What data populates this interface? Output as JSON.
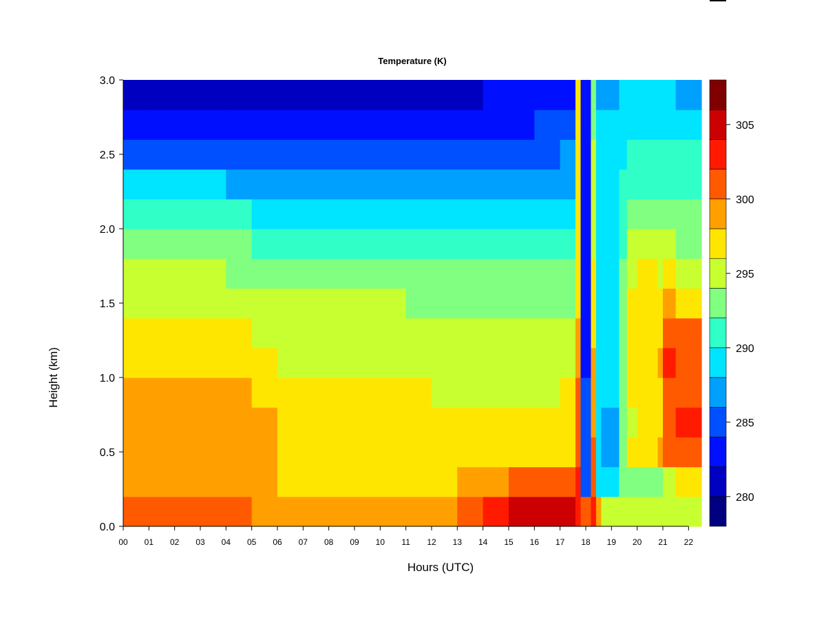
{
  "chart_data": {
    "type": "heatmap",
    "title": "Temperature (K)",
    "xlabel": "Hours (UTC)",
    "ylabel": "Height (km)",
    "xlim": [
      0,
      22.5
    ],
    "ylim": [
      0,
      3
    ],
    "x_ticks": [
      0,
      1,
      2,
      3,
      4,
      5,
      6,
      7,
      8,
      9,
      10,
      11,
      12,
      13,
      14,
      15,
      16,
      17,
      18,
      19,
      20,
      21,
      22
    ],
    "x_tick_labels": [
      "00",
      "01",
      "02",
      "03",
      "04",
      "05",
      "06",
      "07",
      "08",
      "09",
      "10",
      "11",
      "12",
      "13",
      "14",
      "15",
      "16",
      "17",
      "18",
      "19",
      "20",
      "21",
      "22"
    ],
    "y_ticks": [
      0,
      0.5,
      1,
      1.5,
      2,
      2.5,
      3
    ],
    "y_tick_labels": [
      "0.0",
      "0.5",
      "1.0",
      "1.5",
      "2.0",
      "2.5",
      "3.0"
    ],
    "colorbar": {
      "levels": [
        278,
        280,
        282,
        284,
        286,
        288,
        290,
        292,
        294,
        296,
        298,
        300,
        302,
        304,
        306,
        308
      ],
      "colors": [
        "#000080",
        "#0000C0",
        "#0010FF",
        "#0050FF",
        "#00A0FF",
        "#00E5FF",
        "#30FFC8",
        "#80FF80",
        "#C8FF30",
        "#FFE600",
        "#FFA000",
        "#FF5A00",
        "#FF1A00",
        "#CC0000",
        "#800000"
      ],
      "ticks": [
        280,
        285,
        290,
        295,
        300,
        305
      ],
      "tick_labels": [
        "280",
        "285",
        "290",
        "295",
        "300",
        "305"
      ]
    },
    "y_edges_km": [
      0,
      0.2,
      0.4,
      0.6,
      0.8,
      1.0,
      1.2,
      1.4,
      1.6,
      1.8,
      2.0,
      2.2,
      2.4,
      2.6,
      2.8,
      3.0
    ],
    "x_edges_hours": [
      0,
      1,
      2,
      3,
      4,
      5,
      6,
      7,
      8,
      9,
      10,
      11,
      12,
      13,
      14,
      15,
      16,
      17,
      17.6,
      17.8,
      18.2,
      18.4,
      18.6,
      19.3,
      19.6,
      20,
      20.8,
      21,
      21.5,
      22.5
    ],
    "values_K": [
      [
        301,
        299.5,
        299.5,
        299.5,
        299,
        297,
        296,
        295,
        294,
        293,
        291,
        288,
        285,
        283,
        280
      ],
      [
        301,
        299.5,
        299.5,
        299.5,
        299,
        297,
        296,
        295,
        294,
        293,
        291,
        288,
        285,
        283,
        280
      ],
      [
        301.5,
        299.5,
        299.5,
        299.5,
        299,
        297,
        296,
        295,
        294,
        293,
        291,
        288,
        285,
        283,
        280
      ],
      [
        301,
        299.5,
        299.5,
        299.5,
        299,
        297,
        296,
        295,
        294,
        293,
        291,
        288,
        285,
        283,
        280
      ],
      [
        300.5,
        299.5,
        299.5,
        299,
        298,
        297,
        296,
        295,
        293.5,
        292,
        290,
        287.5,
        285,
        283,
        280
      ],
      [
        299,
        298.5,
        299,
        298,
        297.5,
        296.5,
        295.5,
        294.5,
        293,
        291.5,
        289.5,
        287,
        285,
        283,
        280.5
      ],
      [
        298,
        297.5,
        297.5,
        297,
        296.5,
        295.5,
        295,
        294,
        292.5,
        291,
        289,
        287,
        285,
        283,
        281
      ],
      [
        298,
        297.5,
        297.5,
        297,
        296.5,
        295.5,
        295,
        294,
        292.5,
        291,
        289,
        287,
        285,
        283,
        281
      ],
      [
        298,
        297.5,
        297.5,
        297,
        296.5,
        295.5,
        295,
        294,
        292.5,
        291,
        289,
        287,
        285,
        283,
        281
      ],
      [
        298,
        297.5,
        297.5,
        297,
        296.5,
        295.5,
        295,
        294,
        292.5,
        291,
        289,
        287,
        285,
        283,
        281
      ],
      [
        298,
        297.5,
        297.5,
        297,
        296.5,
        295.5,
        295,
        294,
        292.5,
        291,
        289,
        287,
        285,
        283,
        281
      ],
      [
        298.5,
        297.5,
        297,
        296.5,
        296,
        295.5,
        294.5,
        293.5,
        292.5,
        291,
        289,
        287,
        285,
        283,
        281
      ],
      [
        299,
        297.5,
        296.5,
        296,
        295.5,
        295,
        294.5,
        293.5,
        292,
        290.5,
        289,
        287,
        285,
        283,
        281
      ],
      [
        300,
        298,
        296.5,
        296,
        295.5,
        295,
        294.5,
        293.5,
        292,
        290.5,
        289,
        287,
        285,
        283,
        281.5
      ],
      [
        302,
        299.5,
        297,
        296,
        295.5,
        295,
        294.5,
        293,
        292,
        290.5,
        289,
        287,
        285,
        283.5,
        282
      ],
      [
        304,
        300.5,
        297.5,
        296,
        295.5,
        295,
        294.5,
        293,
        292,
        290.5,
        289,
        287,
        285.5,
        283.5,
        282
      ],
      [
        304.5,
        301,
        297.5,
        296.5,
        295.5,
        295,
        294.5,
        293,
        292,
        290.5,
        289,
        287.5,
        285.5,
        284,
        282.5
      ],
      [
        304,
        300.5,
        297.5,
        296.5,
        296,
        295,
        294.5,
        293.5,
        292,
        290.5,
        289,
        287.5,
        286,
        284,
        283
      ],
      [
        303,
        302,
        301,
        301,
        300,
        299,
        298,
        297,
        297,
        296,
        296,
        296,
        296,
        296,
        296
      ],
      [
        301,
        285,
        284,
        284,
        284,
        283.5,
        283,
        283,
        283,
        283,
        283,
        282.5,
        282.5,
        282,
        282
      ],
      [
        303,
        300,
        300,
        299,
        299,
        298,
        297,
        296,
        296,
        295,
        295,
        294,
        294,
        293,
        293
      ],
      [
        299,
        289,
        288,
        289,
        289,
        289,
        289,
        289,
        289,
        289,
        289,
        289,
        288,
        288,
        287
      ],
      [
        294,
        289,
        287,
        287,
        288,
        288.5,
        289,
        289,
        289.5,
        289.5,
        289,
        288.5,
        288,
        288,
        287.5
      ],
      [
        294,
        293,
        293,
        292.5,
        292,
        292,
        292,
        292,
        292,
        291.5,
        291,
        290,
        289.5,
        289,
        288
      ],
      [
        294,
        293,
        296,
        295,
        296,
        296,
        296.5,
        296,
        295,
        294,
        292,
        291,
        290,
        289,
        288
      ],
      [
        294,
        293,
        296,
        297,
        297,
        297,
        297,
        296.5,
        296,
        295,
        293,
        291.5,
        290.5,
        289,
        288
      ],
      [
        294,
        293,
        298,
        297,
        297.5,
        298,
        297,
        296,
        295,
        294,
        292,
        291,
        290,
        289,
        288
      ],
      [
        294,
        295,
        300,
        301,
        301.5,
        302,
        300,
        298,
        296,
        294,
        292,
        291,
        290,
        289,
        288
      ],
      [
        294,
        296,
        301,
        302,
        301.5,
        300.5,
        300,
        297,
        295,
        293,
        292,
        291,
        290,
        288,
        287
      ]
    ]
  }
}
